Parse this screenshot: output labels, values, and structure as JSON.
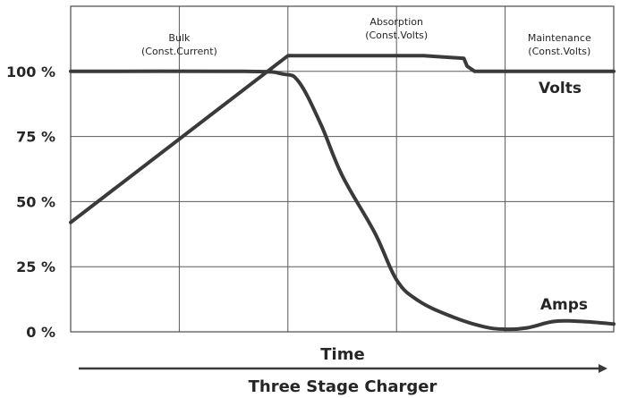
{
  "chart_data": {
    "type": "line",
    "title": "Three Stage Charger",
    "xlabel": "Time",
    "ylabel": "",
    "ylim": [
      0,
      125
    ],
    "xlim": [
      0,
      5
    ],
    "grid": true,
    "y_ticks": [
      "0 %",
      "25 %",
      "50 %",
      "75 %",
      "100 %"
    ],
    "y_tick_values": [
      0,
      25,
      50,
      75,
      100
    ],
    "stages": [
      {
        "label_lines": [
          "Bulk",
          "(Const.Current)"
        ],
        "x_start": 0,
        "x_end": 2
      },
      {
        "label_lines": [
          "Absorption",
          "(Const.Volts)"
        ],
        "x_start": 2,
        "x_end": 4
      },
      {
        "label_lines": [
          "Maintenance",
          "(Const.Volts)"
        ],
        "x_start": 4,
        "x_end": 5
      }
    ],
    "series": [
      {
        "name": "Volts",
        "color": "#3a3a3a",
        "x": [
          0,
          2.0,
          3.25,
          3.62,
          3.65,
          3.72,
          3.8,
          5.0
        ],
        "values": [
          42,
          106,
          106,
          105,
          102,
          100,
          100,
          100
        ]
      },
      {
        "name": "Amps",
        "color": "#3a3a3a",
        "x": [
          0,
          1.6,
          1.95,
          2.1,
          2.3,
          2.5,
          2.8,
          3.0,
          3.2,
          3.5,
          3.8,
          4.0,
          4.2,
          4.45,
          4.7,
          5.0
        ],
        "values": [
          100,
          100,
          99,
          96,
          80,
          60,
          38,
          20,
          12,
          6,
          2,
          1,
          1.5,
          4,
          4,
          3
        ]
      }
    ],
    "series_label_positions": {
      "Volts": "right, below 100 % line",
      "Amps": "right, above curve"
    }
  }
}
